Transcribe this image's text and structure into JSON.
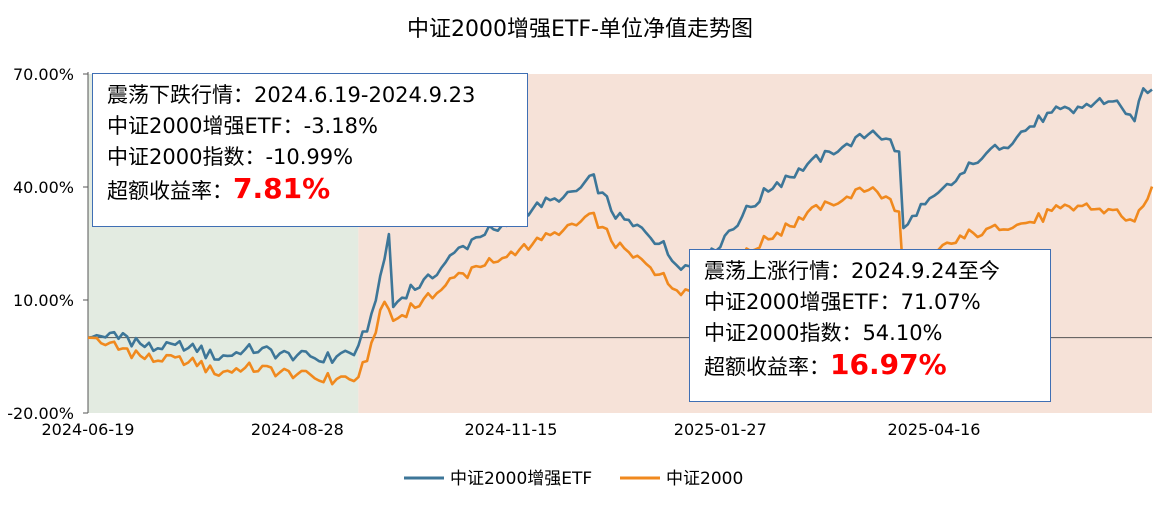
{
  "chart_data": {
    "type": "line",
    "title": "中证2000增强ETF-单位净值走势图",
    "ylim": [
      -20,
      70
    ],
    "yticks": [
      "70.00%",
      "40.00%",
      "10.00%",
      "-20.00%"
    ],
    "ytick_values": [
      70,
      40,
      10,
      -20
    ],
    "xticks": [
      "2024-06-19",
      "2024-08-28",
      "2024-11-15",
      "2025-01-27",
      "2025-04-16"
    ],
    "xtick_index": [
      0,
      48,
      97,
      145,
      194
    ],
    "n_points": 245,
    "shaded_regions": [
      {
        "from_index": 0,
        "to_index": 62,
        "color": "#e3ebe1"
      },
      {
        "from_index": 62,
        "to_index": 244,
        "color": "#f6e2d8"
      }
    ],
    "series": [
      {
        "name": "中证2000增强ETF",
        "color": "#3d7698",
        "keypoints": [
          [
            0,
            0
          ],
          [
            8,
            0.5
          ],
          [
            15,
            -3
          ],
          [
            22,
            -2
          ],
          [
            30,
            -5
          ],
          [
            38,
            -3
          ],
          [
            46,
            -4
          ],
          [
            54,
            -6
          ],
          [
            62,
            -3.2
          ],
          [
            65,
            6
          ],
          [
            67,
            15
          ],
          [
            69,
            27
          ],
          [
            70,
            8
          ],
          [
            73,
            12
          ],
          [
            77,
            15
          ],
          [
            82,
            20
          ],
          [
            87,
            25
          ],
          [
            92,
            28
          ],
          [
            97,
            30
          ],
          [
            100,
            34
          ],
          [
            106,
            36
          ],
          [
            112,
            39
          ],
          [
            116,
            42
          ],
          [
            120,
            34
          ],
          [
            124,
            30
          ],
          [
            128,
            28
          ],
          [
            132,
            24
          ],
          [
            135,
            20
          ],
          [
            139,
            18
          ],
          [
            143,
            22
          ],
          [
            147,
            28
          ],
          [
            150,
            32
          ],
          [
            153,
            36
          ],
          [
            157,
            40
          ],
          [
            162,
            44
          ],
          [
            167,
            47
          ],
          [
            172,
            50
          ],
          [
            176,
            52
          ],
          [
            180,
            55
          ],
          [
            184,
            52
          ],
          [
            186,
            49
          ],
          [
            187,
            29
          ],
          [
            190,
            33
          ],
          [
            194,
            37
          ],
          [
            199,
            42
          ],
          [
            205,
            48
          ],
          [
            211,
            52
          ],
          [
            217,
            57
          ],
          [
            223,
            60
          ],
          [
            228,
            61
          ],
          [
            232,
            63
          ],
          [
            237,
            62
          ],
          [
            240,
            57
          ],
          [
            242,
            66
          ],
          [
            244,
            65.87
          ]
        ]
      },
      {
        "name": "中证2000",
        "color": "#f0891e",
        "keypoints": [
          [
            0,
            0
          ],
          [
            8,
            -3
          ],
          [
            15,
            -6
          ],
          [
            22,
            -6
          ],
          [
            30,
            -9
          ],
          [
            38,
            -8
          ],
          [
            46,
            -9
          ],
          [
            54,
            -11
          ],
          [
            62,
            -11
          ],
          [
            64,
            -5
          ],
          [
            66,
            2
          ],
          [
            68,
            10
          ],
          [
            70,
            4
          ],
          [
            74,
            8
          ],
          [
            78,
            11
          ],
          [
            83,
            15
          ],
          [
            88,
            18
          ],
          [
            93,
            20
          ],
          [
            97,
            22
          ],
          [
            101,
            25
          ],
          [
            106,
            27
          ],
          [
            112,
            30
          ],
          [
            116,
            32
          ],
          [
            120,
            26
          ],
          [
            124,
            22
          ],
          [
            128,
            20
          ],
          [
            132,
            16
          ],
          [
            135,
            13
          ],
          [
            139,
            12
          ],
          [
            143,
            14
          ],
          [
            147,
            18
          ],
          [
            150,
            21
          ],
          [
            153,
            24
          ],
          [
            157,
            27
          ],
          [
            162,
            31
          ],
          [
            167,
            34
          ],
          [
            172,
            36
          ],
          [
            176,
            38
          ],
          [
            180,
            40
          ],
          [
            184,
            36
          ],
          [
            186,
            33
          ],
          [
            187,
            16
          ],
          [
            190,
            19
          ],
          [
            194,
            22
          ],
          [
            199,
            26
          ],
          [
            205,
            28
          ],
          [
            211,
            30
          ],
          [
            217,
            31
          ],
          [
            223,
            34
          ],
          [
            228,
            35
          ],
          [
            232,
            34
          ],
          [
            237,
            33
          ],
          [
            240,
            30
          ],
          [
            242,
            35
          ],
          [
            244,
            40.1
          ]
        ]
      }
    ],
    "legend": [
      {
        "name": "中证2000增强ETF",
        "color": "#3d7698"
      },
      {
        "name": "中证2000",
        "color": "#f0891e"
      }
    ],
    "legend_position": "bottom-center"
  },
  "annotations": {
    "box1": {
      "line1": "震荡下跌行情：2024.6.19-2024.9.23",
      "line2": "中证2000增强ETF：-3.18%",
      "line3": "中证2000指数：-10.99%",
      "line4_label": "超额收益率：",
      "line4_value": "7.81%"
    },
    "box2": {
      "line1": "震荡上涨行情：2024.9.24至今",
      "line2": "中证2000增强ETF：71.07%",
      "line3": "中证2000指数：54.10%",
      "line4_label": "超额收益率：",
      "line4_value": "16.97%"
    }
  }
}
